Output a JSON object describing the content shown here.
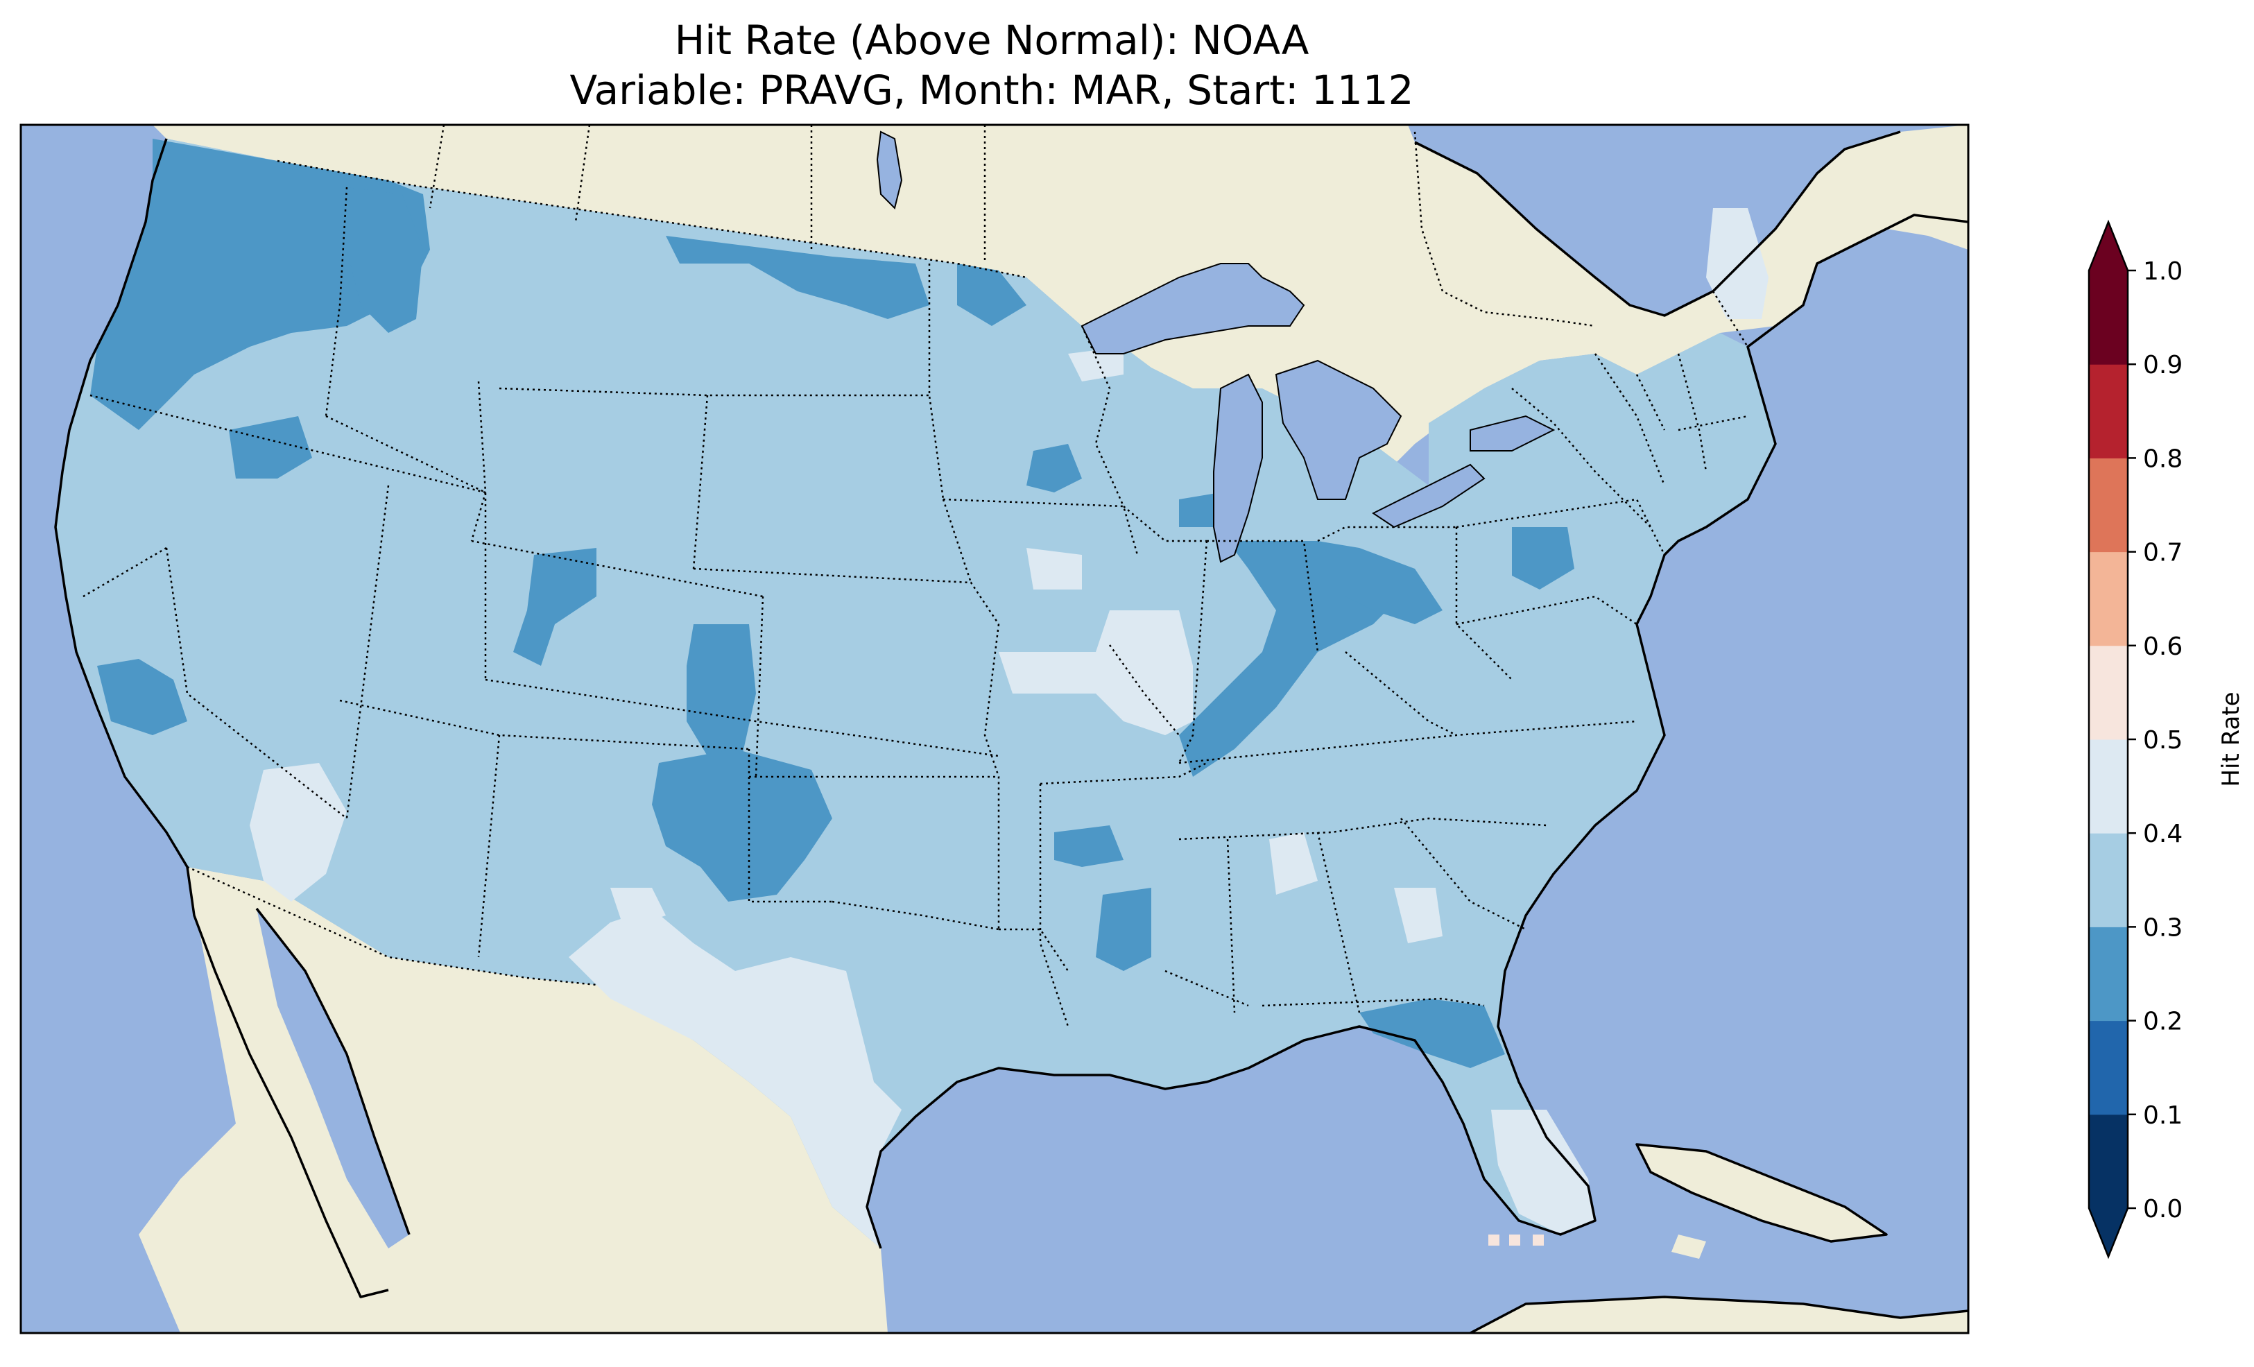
{
  "figure": {
    "title_line1": "Hit Rate (Above Normal): NOAA",
    "title_line2": "Variable: PRAVG, Month: MAR, Start: 1112"
  },
  "colors": {
    "ocean": "#96b3e0",
    "land": "#efedd9",
    "lake": "#96b3e0",
    "coast": "#000000",
    "border": "#000000"
  },
  "colorbar": {
    "label": "Hit Rate",
    "ticks": [
      "0.0",
      "0.1",
      "0.2",
      "0.3",
      "0.4",
      "0.5",
      "0.6",
      "0.7",
      "0.8",
      "0.9",
      "1.0"
    ],
    "bins": [
      {
        "range": "0.0-0.1",
        "color": "#063264"
      },
      {
        "range": "0.1-0.2",
        "color": "#2166ac"
      },
      {
        "range": "0.2-0.3",
        "color": "#4d97c6"
      },
      {
        "range": "0.3-0.4",
        "color": "#a6cde3"
      },
      {
        "range": "0.4-0.5",
        "color": "#dde9f2"
      },
      {
        "range": "0.5-0.6",
        "color": "#f7e5dd"
      },
      {
        "range": "0.6-0.7",
        "color": "#f3b597"
      },
      {
        "range": "0.7-0.8",
        "color": "#de7559"
      },
      {
        "range": "0.8-0.9",
        "color": "#b5222e"
      },
      {
        "range": "0.9-1.0",
        "color": "#6b0120"
      }
    ],
    "extend": "both"
  },
  "map": {
    "region": "Contiguous United States",
    "field_bins_present": [
      "0.2-0.3",
      "0.3-0.4",
      "0.4-0.5",
      "0.5-0.6"
    ]
  }
}
